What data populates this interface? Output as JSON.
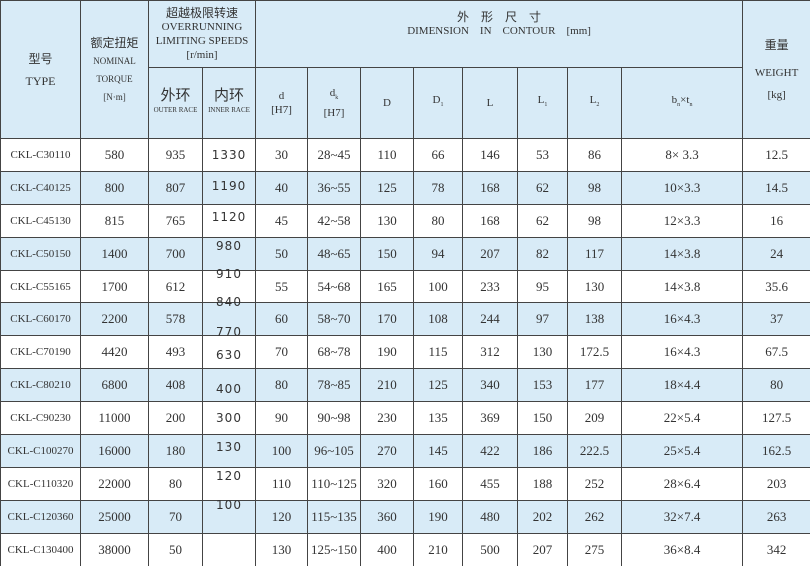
{
  "header": {
    "type_cn": "型号",
    "type_en": "TYPE",
    "torque_cn": "额定扭矩",
    "torque_en1": "NOMINAL",
    "torque_en2": "TORQUE",
    "torque_unit": "[N·m]",
    "speed_cn": "超越极限转速",
    "speed_en1": "OVERRUNNING",
    "speed_en2": "LIMITING SPEEDS",
    "speed_unit": "[r/min]",
    "outer_cn": "外环",
    "outer_en": "OUTER RACE",
    "inner_cn": "内环",
    "inner_en": "INNER RACE",
    "dim_cn": "外　形　尺　寸",
    "dim_en": "DIMENSION　IN　CONTOUR　[mm]",
    "d": "d",
    "d_unit": "[H7]",
    "dk": "d",
    "dk_sub": "k",
    "dk_unit": "[H7]",
    "D": "D",
    "D1": "D",
    "D1_sub": "1",
    "L": "L",
    "L1": "L",
    "L1_sub": "1",
    "L2": "L",
    "L2_sub": "2",
    "bt": "b",
    "bt_sub1": "n",
    "bt_x": "×t",
    "bt_sub2": "n",
    "weight_cn": "重量",
    "weight_en": "WEIGHT",
    "weight_unit": "[kg]"
  },
  "rows": [
    [
      "CKL-C30110",
      "580",
      "935",
      "1330",
      "30",
      "28~45",
      "110",
      "66",
      "146",
      "53",
      "86",
      "8× 3.3",
      "12.5"
    ],
    [
      "CKL-C40125",
      "800",
      "807",
      "1190",
      "40",
      "36~55",
      "125",
      "78",
      "168",
      "62",
      "98",
      "10×3.3",
      "14.5"
    ],
    [
      "CKL-C45130",
      "815",
      "765",
      "1120",
      "45",
      "42~58",
      "130",
      "80",
      "168",
      "62",
      "98",
      "12×3.3",
      "16"
    ],
    [
      "CKL-C50150",
      "1400",
      "700",
      "980",
      "50",
      "48~65",
      "150",
      "94",
      "207",
      "82",
      "117",
      "14×3.8",
      "24"
    ],
    [
      "CKL-C55165",
      "1700",
      "612",
      "910",
      "55",
      "54~68",
      "165",
      "100",
      "233",
      "95",
      "130",
      "14×3.8",
      "35.6"
    ],
    [
      "CKL-C60170",
      "2200",
      "578",
      "840",
      "60",
      "58~70",
      "170",
      "108",
      "244",
      "97",
      "138",
      "16×4.3",
      "37"
    ],
    [
      "CKL-C70190",
      "4420",
      "493",
      "630",
      "70",
      "68~78",
      "190",
      "115",
      "312",
      "130",
      "172.5",
      "16×4.3",
      "67.5"
    ],
    [
      "CKL-C80210",
      "6800",
      "408",
      "400",
      "80",
      "78~85",
      "210",
      "125",
      "340",
      "153",
      "177",
      "18×4.4",
      "80"
    ],
    [
      "CKL-C90230",
      "11000",
      "200",
      "300",
      "90",
      "90~98",
      "230",
      "135",
      "369",
      "150",
      "209",
      "22×5.4",
      "127.5"
    ],
    [
      "CKL-C100270",
      "16000",
      "180",
      "130",
      "100",
      "96~105",
      "270",
      "145",
      "422",
      "186",
      "222.5",
      "25×5.4",
      "162.5"
    ],
    [
      "CKL-C110320",
      "22000",
      "80",
      "120",
      "110",
      "110~125",
      "320",
      "160",
      "455",
      "188",
      "252",
      "28×6.4",
      "203"
    ],
    [
      "CKL-C120360",
      "25000",
      "70",
      "100",
      "120",
      "115~135",
      "360",
      "190",
      "480",
      "202",
      "262",
      "32×7.4",
      "263"
    ],
    [
      "CKL-C130400",
      "38000",
      "50",
      "",
      "130",
      "125~150",
      "400",
      "210",
      "500",
      "207",
      "275",
      "36×8.4",
      "342"
    ]
  ],
  "extra_inner_label": "770",
  "colors": {
    "header_bg": "#d8ebf7",
    "stripe": "#d8ebf7",
    "border": "#444444"
  }
}
